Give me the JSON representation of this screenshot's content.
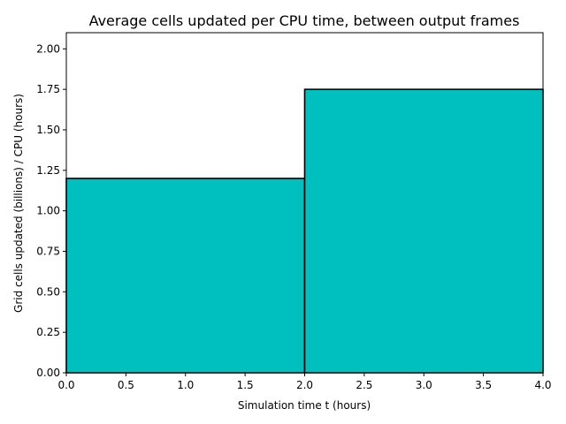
{
  "chart_data": {
    "type": "bar",
    "title": "Average cells updated per CPU time, between output frames",
    "xlabel": "Simulation time t (hours)",
    "ylabel": "Grid cells updated (billions) / CPU (hours)",
    "xlim": [
      0.0,
      4.0
    ],
    "ylim": [
      0.0,
      2.1
    ],
    "grid": false,
    "bar_color": "#00bfbf",
    "edge_color": "#000000",
    "bars": [
      {
        "x_start": 0.0,
        "x_end": 2.0,
        "value": 1.2
      },
      {
        "x_start": 2.0,
        "x_end": 4.0,
        "value": 1.75
      }
    ],
    "xticks": [
      0.0,
      0.5,
      1.0,
      1.5,
      2.0,
      2.5,
      3.0,
      3.5,
      4.0
    ],
    "xtick_labels": [
      "0.0",
      "0.5",
      "1.0",
      "1.5",
      "2.0",
      "2.5",
      "3.0",
      "3.5",
      "4.0"
    ],
    "yticks": [
      0.0,
      0.25,
      0.5,
      0.75,
      1.0,
      1.25,
      1.5,
      1.75,
      2.0
    ],
    "ytick_labels": [
      "0.00",
      "0.25",
      "0.50",
      "0.75",
      "1.00",
      "1.25",
      "1.50",
      "1.75",
      "2.00"
    ]
  }
}
